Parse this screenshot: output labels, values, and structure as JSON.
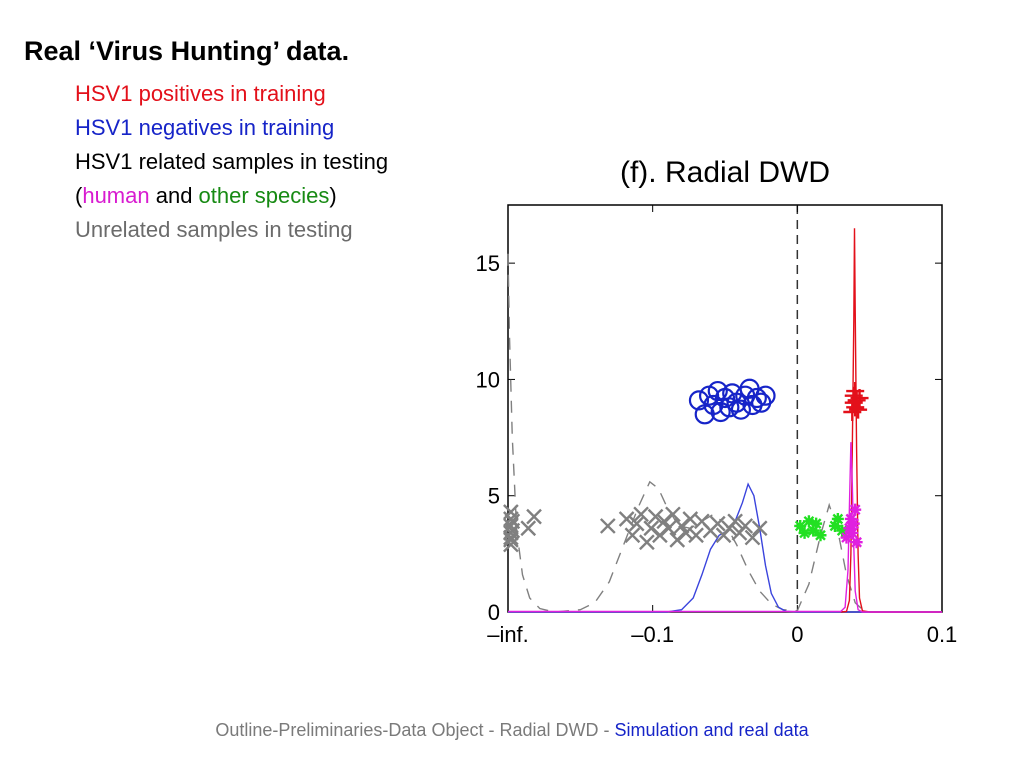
{
  "slide": {
    "title": "Real ‘Virus Hunting’ data.",
    "legend_lines": {
      "positives": "HSV1 positives in training",
      "negatives": "HSV1 negatives in training",
      "related": "HSV1 related samples in testing",
      "paren_open": "(",
      "human": "human",
      "and": " and ",
      "other_species": "other species",
      "paren_close": ")",
      "unrelated": "Unrelated samples in testing"
    },
    "colors": {
      "positives": "#e3101a",
      "negatives": "#1624c8",
      "human": "#d81bd0",
      "other_species": "#178a13",
      "unrelated": "#6b6b6b"
    }
  },
  "chart_data": {
    "type": "scatter",
    "title": "(f). Radial DWD",
    "xlabel": "",
    "ylabel": "",
    "xlim": [
      -0.2,
      0.1
    ],
    "ylim": [
      0,
      17.5
    ],
    "x_ticks": [
      -0.2,
      -0.1,
      0,
      0.1
    ],
    "x_tick_labels": [
      "–inf.",
      "–0.1",
      "0",
      "0.1"
    ],
    "y_ticks": [
      0,
      5,
      10,
      15
    ],
    "y_tick_labels": [
      "0",
      "5",
      "10",
      "15"
    ],
    "grid": false,
    "decision_boundary_x": 0,
    "series": [
      {
        "marker": "x",
        "color": "#808080",
        "points": [
          [
            -0.198,
            3.1
          ],
          [
            -0.198,
            3.4
          ],
          [
            -0.198,
            3.7
          ],
          [
            -0.198,
            4.0
          ],
          [
            -0.198,
            3.2
          ],
          [
            -0.197,
            3.5
          ],
          [
            -0.197,
            3.9
          ],
          [
            -0.198,
            4.3
          ],
          [
            -0.198,
            2.9
          ],
          [
            -0.186,
            3.6
          ],
          [
            -0.182,
            4.1
          ],
          [
            -0.131,
            3.7
          ],
          [
            -0.118,
            4.0
          ],
          [
            -0.114,
            3.3
          ],
          [
            -0.111,
            3.8
          ],
          [
            -0.108,
            4.2
          ],
          [
            -0.104,
            3.0
          ],
          [
            -0.101,
            3.6
          ],
          [
            -0.098,
            4.1
          ],
          [
            -0.095,
            3.3
          ],
          [
            -0.092,
            3.9
          ],
          [
            -0.089,
            3.6
          ],
          [
            -0.086,
            4.2
          ],
          [
            -0.083,
            3.1
          ],
          [
            -0.08,
            3.7
          ],
          [
            -0.077,
            3.4
          ],
          [
            -0.074,
            4.0
          ],
          [
            -0.07,
            3.3
          ],
          [
            -0.066,
            3.9
          ],
          [
            -0.06,
            3.5
          ],
          [
            -0.055,
            3.8
          ],
          [
            -0.051,
            3.3
          ],
          [
            -0.047,
            3.6
          ],
          [
            -0.043,
            3.9
          ],
          [
            -0.04,
            3.4
          ],
          [
            -0.036,
            3.7
          ],
          [
            -0.031,
            3.2
          ],
          [
            -0.026,
            3.6
          ]
        ]
      },
      {
        "marker": "o",
        "color": "#1624c8",
        "points": [
          [
            -0.068,
            9.1
          ],
          [
            -0.064,
            8.5
          ],
          [
            -0.061,
            9.3
          ],
          [
            -0.058,
            8.9
          ],
          [
            -0.055,
            9.5
          ],
          [
            -0.053,
            8.6
          ],
          [
            -0.05,
            9.2
          ],
          [
            -0.047,
            8.8
          ],
          [
            -0.045,
            9.4
          ],
          [
            -0.042,
            9.0
          ],
          [
            -0.039,
            8.7
          ],
          [
            -0.036,
            9.3
          ],
          [
            -0.033,
            9.6
          ],
          [
            -0.031,
            8.9
          ],
          [
            -0.028,
            9.2
          ],
          [
            -0.025,
            9.0
          ],
          [
            -0.022,
            9.3
          ]
        ]
      },
      {
        "marker": "+",
        "color": "#e3101a",
        "points": [
          [
            0.038,
            8.6
          ],
          [
            0.039,
            9.0
          ],
          [
            0.039,
            9.3
          ],
          [
            0.04,
            8.8
          ],
          [
            0.04,
            9.5
          ],
          [
            0.041,
            9.1
          ],
          [
            0.042,
            8.7
          ],
          [
            0.043,
            9.2
          ]
        ]
      },
      {
        "marker": "*",
        "color": "#22e022",
        "points": [
          [
            0.002,
            3.7
          ],
          [
            0.005,
            3.4
          ],
          [
            0.008,
            3.9
          ],
          [
            0.011,
            3.5
          ],
          [
            0.013,
            3.8
          ],
          [
            0.016,
            3.3
          ],
          [
            0.026,
            3.7
          ],
          [
            0.028,
            4.0
          ],
          [
            0.031,
            3.5
          ]
        ]
      },
      {
        "marker": "*",
        "color": "#e020e0",
        "points": [
          [
            0.034,
            3.2
          ],
          [
            0.036,
            3.6
          ],
          [
            0.037,
            4.0
          ],
          [
            0.038,
            3.4
          ],
          [
            0.039,
            3.8
          ],
          [
            0.04,
            4.4
          ],
          [
            0.041,
            3.0
          ]
        ]
      }
    ],
    "density_curves": [
      {
        "color": "#808080",
        "dash": true,
        "points": [
          [
            -0.2,
            15.4
          ],
          [
            -0.199,
            12.0
          ],
          [
            -0.197,
            7.5
          ],
          [
            -0.194,
            3.5
          ],
          [
            -0.19,
            1.6
          ],
          [
            -0.185,
            0.6
          ],
          [
            -0.178,
            0.15
          ],
          [
            -0.168,
            0.0
          ],
          [
            -0.15,
            0.1
          ],
          [
            -0.14,
            0.4
          ],
          [
            -0.13,
            1.3
          ],
          [
            -0.12,
            2.9
          ],
          [
            -0.11,
            4.5
          ],
          [
            -0.102,
            5.6
          ],
          [
            -0.096,
            5.3
          ],
          [
            -0.09,
            4.5
          ],
          [
            -0.082,
            3.7
          ],
          [
            -0.074,
            3.6
          ],
          [
            -0.066,
            3.9
          ],
          [
            -0.058,
            4.2
          ],
          [
            -0.05,
            3.8
          ],
          [
            -0.042,
            2.9
          ],
          [
            -0.034,
            1.8
          ],
          [
            -0.026,
            0.9
          ],
          [
            -0.018,
            0.35
          ],
          [
            -0.01,
            0.1
          ],
          [
            0.0,
            0.05
          ],
          [
            0.008,
            1.2
          ],
          [
            0.016,
            3.3
          ],
          [
            0.022,
            4.6
          ],
          [
            0.028,
            3.5
          ],
          [
            0.034,
            1.6
          ],
          [
            0.04,
            0.4
          ],
          [
            0.046,
            0.05
          ]
        ]
      },
      {
        "color": "#3a44dd",
        "dash": false,
        "points": [
          [
            -0.2,
            0.0
          ],
          [
            -0.09,
            0.0
          ],
          [
            -0.08,
            0.1
          ],
          [
            -0.072,
            0.6
          ],
          [
            -0.066,
            1.6
          ],
          [
            -0.06,
            2.7
          ],
          [
            -0.054,
            3.3
          ],
          [
            -0.048,
            3.5
          ],
          [
            -0.043,
            3.9
          ],
          [
            -0.038,
            4.7
          ],
          [
            -0.034,
            5.5
          ],
          [
            -0.03,
            5.0
          ],
          [
            -0.026,
            3.6
          ],
          [
            -0.022,
            2.0
          ],
          [
            -0.018,
            0.8
          ],
          [
            -0.013,
            0.2
          ],
          [
            -0.008,
            0.03
          ],
          [
            0.0,
            0.0
          ],
          [
            0.1,
            0.0
          ]
        ]
      },
      {
        "color": "#e3101a",
        "dash": false,
        "points": [
          [
            0.03,
            0.0
          ],
          [
            0.034,
            0.02
          ],
          [
            0.036,
            0.5
          ],
          [
            0.037,
            2.5
          ],
          [
            0.038,
            7.0
          ],
          [
            0.039,
            12.5
          ],
          [
            0.0395,
            16.5
          ],
          [
            0.04,
            13.0
          ],
          [
            0.041,
            7.0
          ],
          [
            0.042,
            2.5
          ],
          [
            0.043,
            0.6
          ],
          [
            0.045,
            0.05
          ],
          [
            0.05,
            0.0
          ],
          [
            0.1,
            0.0
          ]
        ]
      },
      {
        "color": "#e020e0",
        "dash": false,
        "points": [
          [
            -0.2,
            0.02
          ],
          [
            0.03,
            0.02
          ],
          [
            0.033,
            0.2
          ],
          [
            0.035,
            1.8
          ],
          [
            0.036,
            4.5
          ],
          [
            0.037,
            7.3
          ],
          [
            0.038,
            5.5
          ],
          [
            0.039,
            2.8
          ],
          [
            0.04,
            0.9
          ],
          [
            0.042,
            0.1
          ],
          [
            0.045,
            0.0
          ],
          [
            0.1,
            0.0
          ]
        ]
      }
    ]
  },
  "footer": {
    "prefix": "Outline-Preliminaries-Data Object - Radial DWD - ",
    "link": "Simulation and real data"
  }
}
